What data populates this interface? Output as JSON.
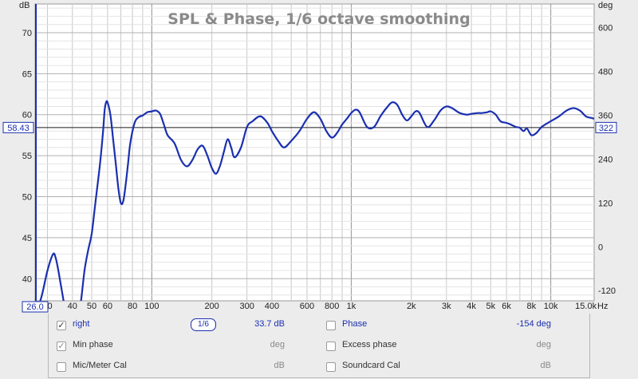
{
  "chart_data": {
    "type": "line",
    "title": "SPL & Phase, 1/6 octave smoothing",
    "ylabel_left": "dB",
    "ylabel_right": "deg",
    "xlabel": "Hz",
    "xscale": "log",
    "xlim": [
      26.0,
      16500
    ],
    "ylim_left": [
      37.3,
      73.5
    ],
    "ylim_right": [
      -148,
      665
    ],
    "x_ticks": [
      "30",
      "40",
      "50",
      "60",
      "80",
      "100",
      "200",
      "300",
      "400",
      "600",
      "800",
      "1k",
      "2k",
      "3k",
      "4k",
      "5k",
      "6k",
      "8k",
      "10k",
      "15.0k"
    ],
    "x_tick_values": [
      30,
      40,
      50,
      60,
      80,
      100,
      200,
      300,
      400,
      600,
      800,
      1000,
      2000,
      3000,
      4000,
      5000,
      6000,
      8000,
      10000,
      15000
    ],
    "y_ticks_left": [
      40,
      45,
      50,
      55,
      60,
      65,
      70
    ],
    "y_ticks_right": [
      -120,
      0,
      120,
      240,
      360,
      480,
      600
    ],
    "x_min_label": "26.0",
    "cursor_dB": "58.43",
    "cursor_deg": "322",
    "cursor_level": 58.43,
    "grid": true,
    "series": [
      {
        "name": "right",
        "color": "#1a2fb0",
        "x": [
          26,
          28,
          30,
          32,
          33,
          34,
          36,
          38,
          40,
          42,
          44,
          46,
          48,
          50,
          52,
          55,
          57,
          58,
          59,
          60,
          62,
          64,
          66,
          68,
          70,
          72,
          74,
          76,
          78,
          82,
          86,
          90,
          95,
          100,
          105,
          110,
          115,
          120,
          130,
          140,
          150,
          160,
          170,
          180,
          190,
          200,
          210,
          220,
          230,
          240,
          250,
          260,
          280,
          300,
          320,
          350,
          380,
          400,
          430,
          460,
          500,
          550,
          600,
          650,
          700,
          750,
          800,
          850,
          900,
          950,
          1000,
          1050,
          1100,
          1200,
          1300,
          1400,
          1500,
          1600,
          1700,
          1800,
          1900,
          2000,
          2100,
          2200,
          2400,
          2600,
          2800,
          3000,
          3200,
          3500,
          3800,
          4000,
          4300,
          4500,
          4800,
          5000,
          5300,
          5600,
          6000,
          6300,
          6700,
          7000,
          7300,
          7600,
          8000,
          8500,
          9000,
          10000,
          11000,
          12000,
          13000,
          14000,
          15000,
          16000,
          16500
        ],
        "values": [
          35.5,
          37.8,
          41.0,
          43.0,
          42.5,
          41.0,
          37.5,
          34.0,
          33.5,
          34.5,
          37.0,
          41.0,
          43.5,
          45.5,
          49.0,
          54.0,
          58.0,
          60.5,
          61.5,
          61.5,
          60.0,
          57.0,
          54.0,
          51.0,
          49.2,
          49.5,
          51.5,
          54.0,
          56.5,
          59.0,
          59.7,
          59.9,
          60.3,
          60.4,
          60.5,
          60.1,
          58.8,
          57.5,
          56.5,
          54.5,
          53.7,
          54.5,
          55.8,
          56.2,
          55.0,
          53.5,
          52.8,
          53.8,
          55.5,
          57.0,
          56.0,
          54.8,
          56.0,
          58.5,
          59.2,
          59.8,
          59.0,
          58.0,
          56.8,
          56.0,
          56.8,
          58.0,
          59.5,
          60.3,
          59.5,
          58.0,
          57.2,
          57.8,
          58.8,
          59.5,
          60.2,
          60.6,
          60.3,
          58.5,
          58.5,
          59.8,
          60.8,
          61.5,
          61.2,
          60.0,
          59.3,
          59.8,
          60.4,
          60.2,
          58.5,
          59.3,
          60.5,
          61.0,
          60.8,
          60.2,
          60.0,
          60.1,
          60.2,
          60.2,
          60.3,
          60.4,
          60.0,
          59.2,
          59.0,
          58.8,
          58.5,
          58.4,
          58.0,
          58.3,
          57.5,
          57.8,
          58.5,
          59.2,
          59.8,
          60.5,
          60.8,
          60.5,
          59.8,
          59.6,
          59.5
        ]
      }
    ]
  },
  "legend": {
    "rows": [
      {
        "left_checked": true,
        "left_label": "right",
        "left_value": "33.7 dB",
        "left_style": "blue",
        "right_checked": false,
        "right_label": "Phase",
        "right_value": "-154 deg",
        "right_style": "blue",
        "left_check_glyph": "✓",
        "right_check_glyph": ""
      },
      {
        "left_checked": true,
        "left_label": "Min phase",
        "left_value": "deg",
        "left_style": "grey",
        "right_checked": false,
        "right_label": "Excess phase",
        "right_value": "deg",
        "right_style": "grey",
        "left_check_glyph": "✓",
        "right_check_glyph": ""
      },
      {
        "left_checked": false,
        "left_label": "Mic/Meter Cal",
        "left_value": "dB",
        "left_style": "grey",
        "right_checked": false,
        "right_label": "Soundcard Cal",
        "right_value": "dB",
        "right_style": "grey",
        "left_check_glyph": "",
        "right_check_glyph": ""
      }
    ],
    "smoothing_label": "1/6"
  }
}
